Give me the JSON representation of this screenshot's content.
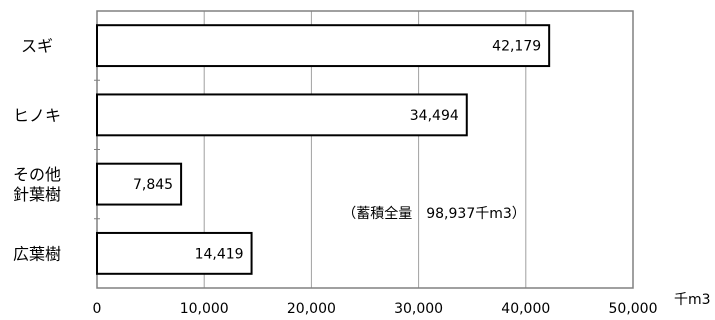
{
  "chart_data": {
    "type": "bar",
    "orientation": "horizontal",
    "categories": [
      [
        "スギ"
      ],
      [
        "ヒノキ"
      ],
      [
        "その他",
        "針葉樹"
      ],
      [
        "広葉樹"
      ]
    ],
    "values": [
      42179,
      34494,
      7845,
      14419
    ],
    "value_labels": [
      "42,179",
      "34,494",
      "7,845",
      "14,419"
    ],
    "xlim": [
      0,
      50000
    ],
    "x_ticks": [
      0,
      10000,
      20000,
      30000,
      40000,
      50000
    ],
    "x_tick_labels": [
      "0",
      "10,000",
      "20,000",
      "30,000",
      "40,000",
      "50,000"
    ],
    "x_unit": "千m3",
    "annotation": "（蓄積全量　98,937千m3）",
    "grid": "vertical",
    "bar_color": "#ffffff",
    "bar_edge_color": "#000000",
    "grid_color": "#a0a0a0",
    "frame_color": "#808080"
  }
}
